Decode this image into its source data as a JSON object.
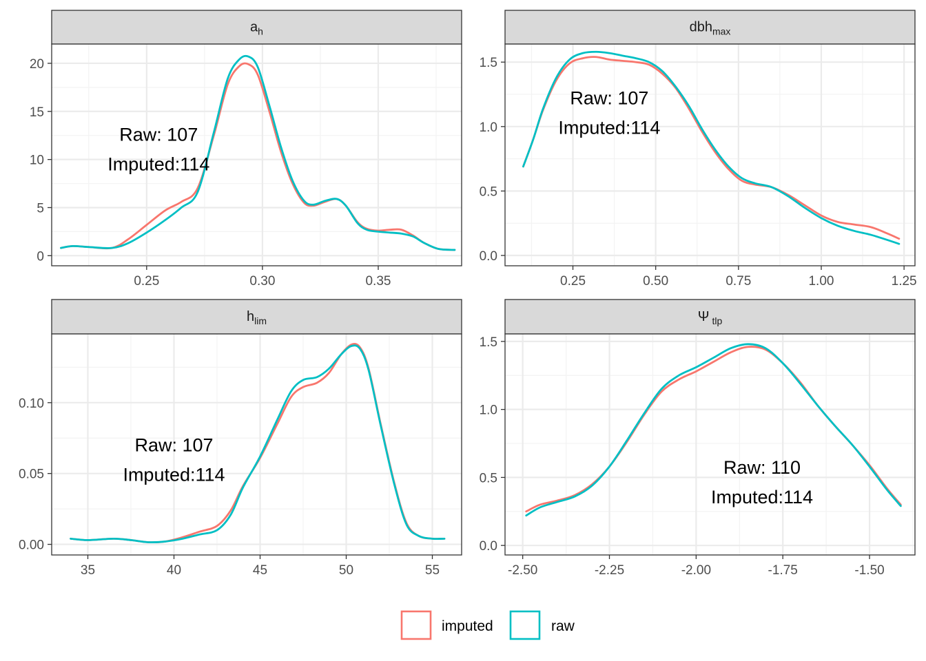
{
  "chart_data": [
    {
      "type": "line",
      "strip": {
        "main": "a",
        "sub": "h"
      },
      "xticks": [
        0.25,
        0.3,
        0.35
      ],
      "xtick_labels": [
        "0.25",
        "0.30",
        "0.35"
      ],
      "xlim": [
        0.209,
        0.386
      ],
      "yticks": [
        0,
        5,
        10,
        15,
        20
      ],
      "ytick_labels": [
        "0",
        "5",
        "10",
        "15",
        "20"
      ],
      "ylim": [
        -1.05,
        22.0
      ],
      "annotation": [
        "Raw: 107",
        "Imputed:114"
      ],
      "annotation_at": [
        0.2552,
        9.5
      ],
      "series": [
        {
          "name": "imputed",
          "color": "#F8766D",
          "x": [
            0.213,
            0.218,
            0.225,
            0.235,
            0.242,
            0.25,
            0.258,
            0.265,
            0.272,
            0.279,
            0.285,
            0.29,
            0.294,
            0.298,
            0.303,
            0.308,
            0.313,
            0.318,
            0.322,
            0.327,
            0.332,
            0.336,
            0.341,
            0.345,
            0.35,
            0.355,
            0.36,
            0.365,
            0.37,
            0.376,
            0.383
          ],
          "y": [
            0.8,
            1.0,
            0.9,
            0.8,
            1.7,
            3.2,
            4.7,
            5.6,
            7.0,
            12.5,
            17.8,
            19.7,
            19.9,
            18.8,
            15.0,
            10.8,
            7.5,
            5.5,
            5.2,
            5.6,
            5.9,
            5.2,
            3.5,
            2.8,
            2.6,
            2.7,
            2.7,
            2.1,
            1.3,
            0.7,
            0.6
          ]
        },
        {
          "name": "raw",
          "color": "#00BFC4",
          "x": [
            0.213,
            0.218,
            0.225,
            0.235,
            0.242,
            0.25,
            0.258,
            0.265,
            0.272,
            0.279,
            0.285,
            0.29,
            0.294,
            0.298,
            0.303,
            0.308,
            0.313,
            0.318,
            0.322,
            0.327,
            0.332,
            0.336,
            0.341,
            0.345,
            0.35,
            0.355,
            0.36,
            0.365,
            0.37,
            0.376,
            0.383
          ],
          "y": [
            0.8,
            1.0,
            0.9,
            0.8,
            1.3,
            2.4,
            3.7,
            5.0,
            6.6,
            12.8,
            18.4,
            20.4,
            20.7,
            19.6,
            15.6,
            11.3,
            7.8,
            5.7,
            5.3,
            5.7,
            5.9,
            5.2,
            3.4,
            2.7,
            2.5,
            2.4,
            2.3,
            2.0,
            1.3,
            0.7,
            0.6
          ]
        }
      ]
    },
    {
      "type": "line",
      "strip": {
        "main": "dbh",
        "sub": "max"
      },
      "xticks": [
        0.25,
        0.5,
        0.75,
        1.0,
        1.25
      ],
      "xtick_labels": [
        "0.25",
        "0.50",
        "0.75",
        "1.00",
        "1.25"
      ],
      "xlim": [
        0.045,
        1.283
      ],
      "yticks": [
        0,
        0.5,
        1.0,
        1.5
      ],
      "ytick_labels": [
        "0.0",
        "0.5",
        "1.0",
        "1.5"
      ],
      "ylim": [
        -0.08,
        1.64
      ],
      "annotation": [
        "Raw: 107",
        "Imputed:114"
      ],
      "annotation_at": [
        0.36,
        0.99
      ],
      "series": [
        {
          "name": "imputed",
          "color": "#F8766D",
          "x": [
            0.1,
            0.13,
            0.16,
            0.2,
            0.24,
            0.28,
            0.32,
            0.36,
            0.4,
            0.44,
            0.48,
            0.52,
            0.56,
            0.6,
            0.64,
            0.68,
            0.72,
            0.76,
            0.8,
            0.85,
            0.9,
            0.95,
            1.0,
            1.05,
            1.1,
            1.15,
            1.2,
            1.235
          ],
          "y": [
            0.69,
            0.9,
            1.13,
            1.36,
            1.49,
            1.53,
            1.54,
            1.52,
            1.51,
            1.5,
            1.48,
            1.41,
            1.3,
            1.14,
            0.96,
            0.8,
            0.67,
            0.58,
            0.55,
            0.53,
            0.47,
            0.39,
            0.31,
            0.26,
            0.24,
            0.22,
            0.17,
            0.13
          ]
        },
        {
          "name": "raw",
          "color": "#00BFC4",
          "x": [
            0.1,
            0.13,
            0.16,
            0.2,
            0.24,
            0.28,
            0.32,
            0.36,
            0.4,
            0.44,
            0.48,
            0.52,
            0.56,
            0.6,
            0.64,
            0.68,
            0.72,
            0.76,
            0.8,
            0.85,
            0.9,
            0.95,
            1.0,
            1.05,
            1.1,
            1.15,
            1.2,
            1.235
          ],
          "y": [
            0.69,
            0.9,
            1.14,
            1.38,
            1.52,
            1.57,
            1.58,
            1.57,
            1.55,
            1.53,
            1.5,
            1.43,
            1.31,
            1.16,
            0.98,
            0.82,
            0.69,
            0.6,
            0.56,
            0.53,
            0.46,
            0.37,
            0.29,
            0.23,
            0.19,
            0.16,
            0.12,
            0.09
          ]
        }
      ]
    },
    {
      "type": "line",
      "strip": {
        "main": "h",
        "sub": "lim"
      },
      "xticks": [
        35,
        40,
        45,
        50,
        55
      ],
      "xtick_labels": [
        "35",
        "40",
        "45",
        "50",
        "55"
      ],
      "xlim": [
        32.9,
        56.7
      ],
      "yticks": [
        0,
        0.05,
        0.1
      ],
      "ytick_labels": [
        "0.00",
        "0.05",
        "0.10"
      ],
      "ylim": [
        -0.0075,
        0.1485
      ],
      "annotation": [
        "Raw: 107",
        "Imputed:114"
      ],
      "annotation_at": [
        40.0,
        0.049
      ],
      "series": [
        {
          "name": "imputed",
          "color": "#F8766D",
          "x": [
            34.0,
            35.0,
            36.5,
            37.5,
            38.5,
            39.5,
            40.5,
            41.5,
            42.5,
            43.3,
            44.0,
            45.0,
            46.0,
            46.8,
            47.5,
            48.3,
            49.0,
            49.7,
            50.3,
            50.8,
            51.3,
            52.0,
            52.8,
            53.5,
            54.2,
            55.0,
            55.7
          ],
          "y": [
            0.004,
            0.003,
            0.004,
            0.003,
            0.0015,
            0.002,
            0.005,
            0.009,
            0.013,
            0.024,
            0.041,
            0.061,
            0.085,
            0.104,
            0.111,
            0.114,
            0.121,
            0.134,
            0.141,
            0.139,
            0.124,
            0.085,
            0.043,
            0.015,
            0.006,
            0.004,
            0.004
          ]
        },
        {
          "name": "raw",
          "color": "#00BFC4",
          "x": [
            34.0,
            35.0,
            36.5,
            37.5,
            38.5,
            39.5,
            40.5,
            41.5,
            42.5,
            43.3,
            44.0,
            45.0,
            46.0,
            46.8,
            47.5,
            48.3,
            49.0,
            49.7,
            50.3,
            50.8,
            51.3,
            52.0,
            52.8,
            53.5,
            54.2,
            55.0,
            55.7
          ],
          "y": [
            0.004,
            0.003,
            0.004,
            0.003,
            0.0015,
            0.002,
            0.004,
            0.007,
            0.01,
            0.021,
            0.04,
            0.062,
            0.088,
            0.108,
            0.116,
            0.118,
            0.124,
            0.134,
            0.14,
            0.138,
            0.123,
            0.084,
            0.042,
            0.014,
            0.006,
            0.004,
            0.004
          ]
        }
      ]
    },
    {
      "type": "line",
      "strip": {
        "main": "Ψ",
        "sub": "tlp"
      },
      "xticks": [
        -2.5,
        -2.25,
        -2.0,
        -1.75,
        -1.5
      ],
      "xtick_labels": [
        "-2.50",
        "-2.25",
        "-2.00",
        "-1.75",
        "-1.50"
      ],
      "xlim": [
        -2.551,
        -1.369
      ],
      "yticks": [
        0,
        0.5,
        1.0,
        1.5
      ],
      "ytick_labels": [
        "0.0",
        "0.5",
        "1.0",
        "1.5"
      ],
      "ylim": [
        -0.07,
        1.555
      ],
      "annotation": [
        "Raw: 110",
        "Imputed:114"
      ],
      "annotation_at": [
        -1.81,
        0.355
      ],
      "series": [
        {
          "name": "imputed",
          "color": "#F8766D",
          "x": [
            -2.49,
            -2.45,
            -2.4,
            -2.35,
            -2.3,
            -2.25,
            -2.2,
            -2.15,
            -2.1,
            -2.05,
            -2.0,
            -1.95,
            -1.9,
            -1.85,
            -1.8,
            -1.75,
            -1.7,
            -1.65,
            -1.6,
            -1.55,
            -1.5,
            -1.45,
            -1.41
          ],
          "y": [
            0.25,
            0.3,
            0.33,
            0.37,
            0.45,
            0.58,
            0.76,
            0.96,
            1.13,
            1.22,
            1.28,
            1.35,
            1.42,
            1.46,
            1.44,
            1.34,
            1.2,
            1.03,
            0.88,
            0.74,
            0.59,
            0.42,
            0.3
          ]
        },
        {
          "name": "raw",
          "color": "#00BFC4",
          "x": [
            -2.49,
            -2.45,
            -2.4,
            -2.35,
            -2.3,
            -2.25,
            -2.2,
            -2.15,
            -2.1,
            -2.05,
            -2.0,
            -1.95,
            -1.9,
            -1.85,
            -1.8,
            -1.75,
            -1.7,
            -1.65,
            -1.6,
            -1.55,
            -1.5,
            -1.45,
            -1.41
          ],
          "y": [
            0.22,
            0.28,
            0.32,
            0.36,
            0.44,
            0.58,
            0.77,
            0.97,
            1.15,
            1.25,
            1.31,
            1.38,
            1.45,
            1.48,
            1.45,
            1.34,
            1.19,
            1.03,
            0.88,
            0.74,
            0.58,
            0.41,
            0.29
          ]
        }
      ]
    }
  ],
  "legend": {
    "position": "bottom",
    "items": [
      {
        "label": "imputed",
        "color": "#F8766D"
      },
      {
        "label": "raw",
        "color": "#00BFC4"
      }
    ]
  }
}
